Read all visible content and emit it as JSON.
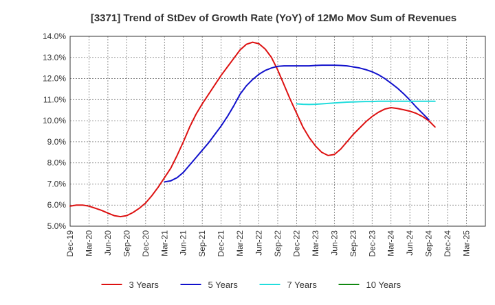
{
  "chart_data": {
    "type": "line",
    "title": "[3371]  Trend of StDev of Growth Rate (YoY) of 12Mo Mov Sum of Revenues",
    "xlabel": "",
    "ylabel": "",
    "ylim": [
      5.0,
      14.0
    ],
    "yticks": [
      "5.0%",
      "6.0%",
      "7.0%",
      "8.0%",
      "9.0%",
      "10.0%",
      "11.0%",
      "12.0%",
      "13.0%",
      "14.0%"
    ],
    "xlim": [
      0,
      66
    ],
    "xtick_labels": [
      "Dec-19",
      "Mar-20",
      "Jun-20",
      "Sep-20",
      "Dec-20",
      "Mar-21",
      "Jun-21",
      "Sep-21",
      "Dec-21",
      "Mar-22",
      "Jun-22",
      "Sep-22",
      "Dec-22",
      "Mar-23",
      "Jun-23",
      "Sep-23",
      "Dec-23",
      "Mar-24",
      "Jun-24",
      "Sep-24",
      "Dec-24",
      "Mar-25"
    ],
    "grid": true,
    "legend_position": "bottom",
    "series": [
      {
        "name": "3 Years",
        "color": "#dd1111",
        "points": [
          [
            0,
            5.95
          ],
          [
            1,
            6.0
          ],
          [
            2,
            6.0
          ],
          [
            3,
            5.95
          ],
          [
            4,
            5.85
          ],
          [
            5,
            5.75
          ],
          [
            6,
            5.62
          ],
          [
            7,
            5.5
          ],
          [
            8,
            5.45
          ],
          [
            9,
            5.5
          ],
          [
            10,
            5.65
          ],
          [
            11,
            5.85
          ],
          [
            12,
            6.1
          ],
          [
            13,
            6.45
          ],
          [
            14,
            6.85
          ],
          [
            15,
            7.3
          ],
          [
            16,
            7.75
          ],
          [
            17,
            8.35
          ],
          [
            18,
            9.0
          ],
          [
            19,
            9.7
          ],
          [
            20,
            10.3
          ],
          [
            21,
            10.8
          ],
          [
            22,
            11.25
          ],
          [
            23,
            11.7
          ],
          [
            24,
            12.15
          ],
          [
            25,
            12.55
          ],
          [
            26,
            12.95
          ],
          [
            27,
            13.35
          ],
          [
            28,
            13.62
          ],
          [
            29,
            13.72
          ],
          [
            30,
            13.65
          ],
          [
            31,
            13.4
          ],
          [
            32,
            13.0
          ],
          [
            33,
            12.4
          ],
          [
            34,
            11.7
          ],
          [
            35,
            11.0
          ],
          [
            36,
            10.35
          ],
          [
            37,
            9.7
          ],
          [
            38,
            9.2
          ],
          [
            39,
            8.8
          ],
          [
            40,
            8.5
          ],
          [
            41,
            8.35
          ],
          [
            42,
            8.4
          ],
          [
            43,
            8.65
          ],
          [
            44,
            9.0
          ],
          [
            45,
            9.35
          ],
          [
            46,
            9.65
          ],
          [
            47,
            9.95
          ],
          [
            48,
            10.2
          ],
          [
            49,
            10.4
          ],
          [
            50,
            10.55
          ],
          [
            51,
            10.62
          ],
          [
            52,
            10.58
          ],
          [
            53,
            10.52
          ],
          [
            54,
            10.45
          ],
          [
            55,
            10.35
          ],
          [
            56,
            10.2
          ],
          [
            57,
            10.0
          ],
          [
            58,
            9.7
          ]
        ]
      },
      {
        "name": "5 Years",
        "color": "#1111cc",
        "points": [
          [
            15,
            7.1
          ],
          [
            16,
            7.15
          ],
          [
            17,
            7.3
          ],
          [
            18,
            7.55
          ],
          [
            19,
            7.9
          ],
          [
            20,
            8.25
          ],
          [
            21,
            8.6
          ],
          [
            22,
            8.95
          ],
          [
            23,
            9.35
          ],
          [
            24,
            9.75
          ],
          [
            25,
            10.2
          ],
          [
            26,
            10.7
          ],
          [
            27,
            11.25
          ],
          [
            28,
            11.65
          ],
          [
            29,
            11.95
          ],
          [
            30,
            12.2
          ],
          [
            31,
            12.38
          ],
          [
            32,
            12.5
          ],
          [
            33,
            12.58
          ],
          [
            34,
            12.6
          ],
          [
            35,
            12.6
          ],
          [
            36,
            12.6
          ],
          [
            37,
            12.6
          ],
          [
            38,
            12.6
          ],
          [
            39,
            12.62
          ],
          [
            40,
            12.63
          ],
          [
            41,
            12.63
          ],
          [
            42,
            12.63
          ],
          [
            43,
            12.62
          ],
          [
            44,
            12.6
          ],
          [
            45,
            12.55
          ],
          [
            46,
            12.5
          ],
          [
            47,
            12.42
          ],
          [
            48,
            12.32
          ],
          [
            49,
            12.18
          ],
          [
            50,
            12.0
          ],
          [
            51,
            11.78
          ],
          [
            52,
            11.55
          ],
          [
            53,
            11.28
          ],
          [
            54,
            10.98
          ],
          [
            55,
            10.65
          ],
          [
            56,
            10.35
          ],
          [
            57,
            10.05
          ]
        ]
      },
      {
        "name": "7 Years",
        "color": "#22dddd",
        "points": [
          [
            36,
            10.8
          ],
          [
            37,
            10.78
          ],
          [
            38,
            10.77
          ],
          [
            39,
            10.78
          ],
          [
            40,
            10.8
          ],
          [
            41,
            10.82
          ],
          [
            42,
            10.84
          ],
          [
            43,
            10.86
          ],
          [
            44,
            10.88
          ],
          [
            45,
            10.89
          ],
          [
            46,
            10.9
          ],
          [
            47,
            10.91
          ],
          [
            48,
            10.91
          ],
          [
            49,
            10.92
          ],
          [
            50,
            10.92
          ],
          [
            51,
            10.92
          ],
          [
            52,
            10.92
          ],
          [
            53,
            10.92
          ],
          [
            54,
            10.92
          ],
          [
            55,
            10.92
          ],
          [
            56,
            10.92
          ],
          [
            57,
            10.92
          ],
          [
            58,
            10.92
          ]
        ]
      },
      {
        "name": "10 Years",
        "color": "#118811",
        "points": []
      }
    ]
  }
}
